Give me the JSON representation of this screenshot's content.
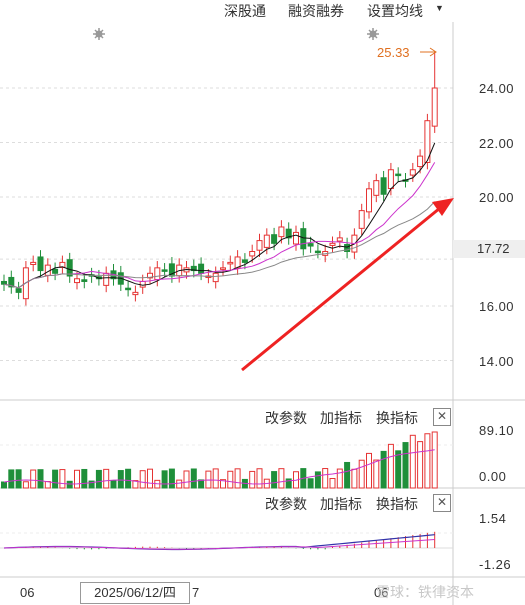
{
  "toolbar": {
    "links": [
      "深股通",
      "融资融券",
      "设置均线"
    ]
  },
  "price_chart": {
    "high_marker": "25.33",
    "current_price": "17.72",
    "y_labels": [
      "24.00",
      "22.00",
      "20.00",
      "16.00",
      "14.00"
    ]
  },
  "volume_panel": {
    "buttons": [
      "改参数",
      "加指标",
      "换指标"
    ],
    "y_labels": [
      "89.10",
      "0.00"
    ]
  },
  "macd_panel": {
    "buttons": [
      "改参数",
      "加指标",
      "换指标"
    ],
    "y_labels": [
      "1.54",
      "-1.26"
    ]
  },
  "x_axis": {
    "left_label": "06",
    "date_box": "2025/06/12/四",
    "after_box": "7",
    "right_label": "06"
  },
  "watermark": "雪球：铁律资本",
  "colors": {
    "up": "#e53333",
    "down": "#1f8f3a",
    "ma5": "#111111",
    "ma10": "#cc33cc",
    "ma20": "#888888",
    "arrow": "#ee2222"
  },
  "chart_data": {
    "type": "candlestick",
    "y_axis_ticks": [
      14,
      16,
      20,
      22,
      24
    ],
    "last_close": 25.33,
    "current_price_label": 17.72
  }
}
